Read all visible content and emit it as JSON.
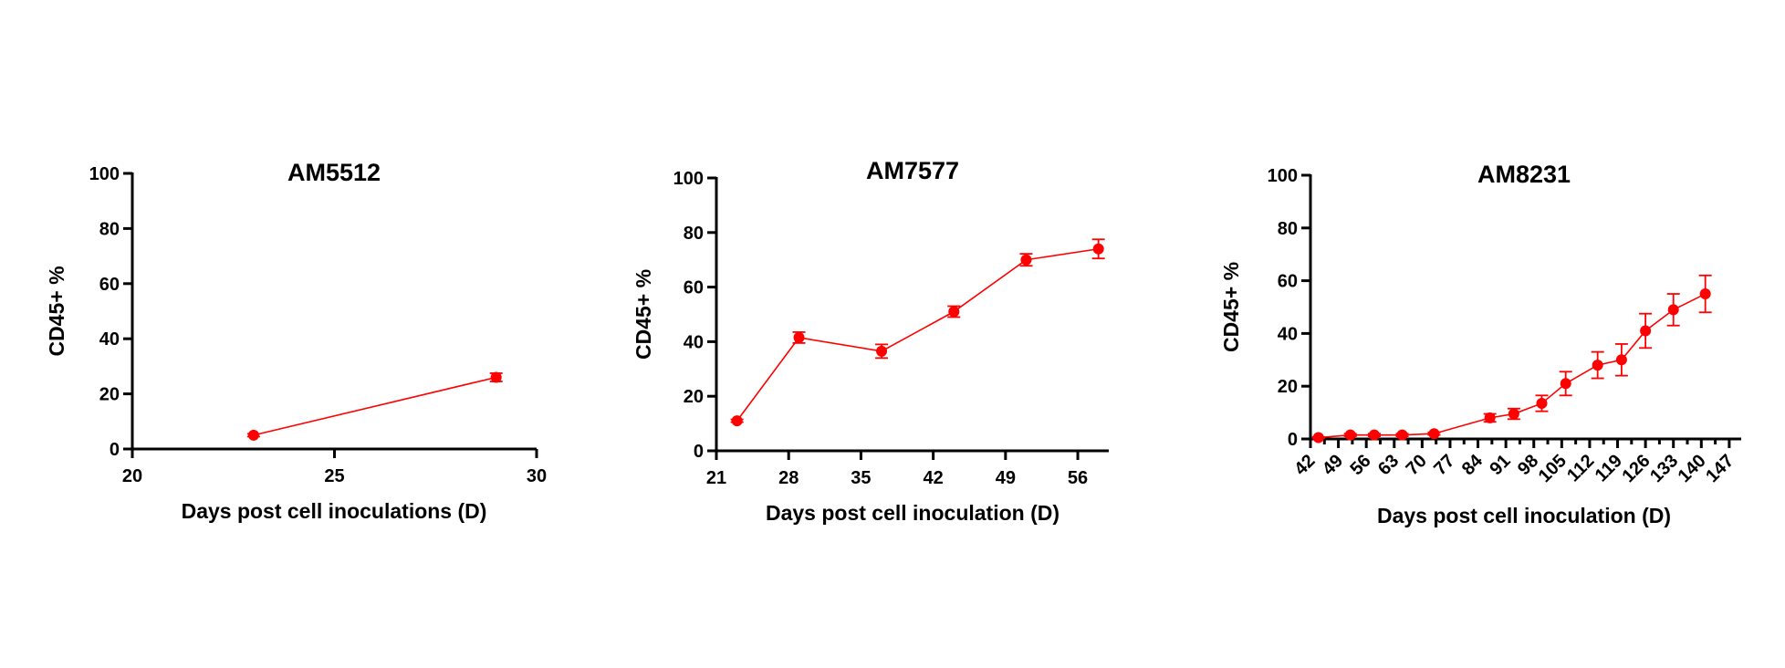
{
  "colors": {
    "series": "#ff0000",
    "axis": "#000000"
  },
  "chart_data": [
    {
      "type": "line",
      "title": "AM5512",
      "xlabel": "Days post cell inoculations (D)",
      "ylabel": "CD45+ %",
      "xlim": [
        20,
        30
      ],
      "ylim": [
        0,
        100
      ],
      "xticks": [
        20,
        25,
        30
      ],
      "yticks": [
        0,
        20,
        40,
        60,
        80,
        100
      ],
      "xtick_rotation": 0,
      "grid": false,
      "series": [
        {
          "x": [
            23,
            29
          ],
          "y": [
            5,
            26
          ],
          "err": [
            0.5,
            1.5
          ]
        }
      ]
    },
    {
      "type": "line",
      "title": "AM7577",
      "xlabel": "Days post cell inoculation (D)",
      "ylabel": "CD45+ %",
      "xlim": [
        21,
        59
      ],
      "ylim": [
        0,
        100
      ],
      "xticks": [
        21,
        28,
        35,
        42,
        49,
        56
      ],
      "yticks": [
        0,
        20,
        40,
        60,
        80,
        100
      ],
      "xtick_rotation": 0,
      "grid": false,
      "series": [
        {
          "x": [
            23,
            29,
            37,
            44,
            51,
            58
          ],
          "y": [
            11,
            41.5,
            36.5,
            51,
            70,
            74
          ],
          "err": [
            0.5,
            2,
            2.5,
            2,
            2.2,
            3.5
          ]
        }
      ]
    },
    {
      "type": "line",
      "title": "AM8231",
      "xlabel": "Days post cell inoculation (D)",
      "ylabel": "CD45+ %",
      "xlim": [
        42,
        150
      ],
      "ylim": [
        0,
        100
      ],
      "xticks": [
        42,
        49,
        56,
        63,
        70,
        77,
        84,
        91,
        98,
        105,
        112,
        119,
        126,
        133,
        140,
        147
      ],
      "yticks": [
        0,
        20,
        40,
        60,
        80,
        100
      ],
      "xtick_rotation": -45,
      "grid": false,
      "series": [
        {
          "x": [
            44,
            52,
            58,
            65,
            73,
            87,
            93,
            100,
            106,
            114,
            120,
            126,
            133,
            141
          ],
          "y": [
            0.5,
            1.5,
            1.5,
            1.5,
            2,
            8,
            9.5,
            13.5,
            21,
            28,
            30,
            41,
            49,
            55
          ],
          "err": [
            0.3,
            0.5,
            0.5,
            0.5,
            0.5,
            1.5,
            2,
            3,
            4.5,
            5,
            6,
            6.5,
            6,
            7
          ]
        }
      ]
    }
  ]
}
